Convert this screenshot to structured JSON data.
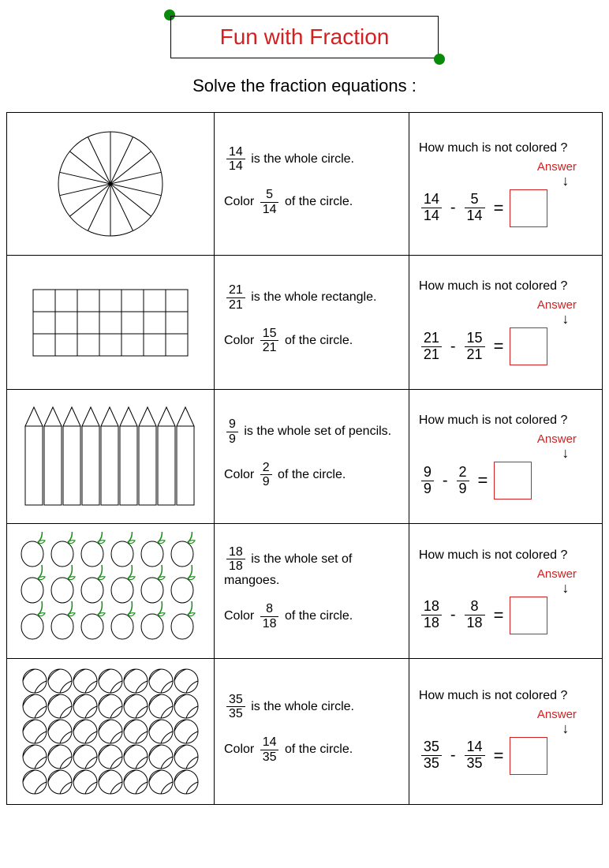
{
  "title": "Fun with Fraction",
  "subtitle": "Solve the fraction equations :",
  "colors": {
    "accent_red": "#d42020",
    "dot_green": "#0a8a0a",
    "leaf_green": "#1a8a1a",
    "border_black": "#000000",
    "background": "#ffffff"
  },
  "labels": {
    "question": "How much is not colored ?",
    "answer": "Answer",
    "is_the": "is the",
    "color_prefix": "Color",
    "of_the_circle": "of the circle.",
    "minus": "-",
    "equals": "="
  },
  "rows": [
    {
      "shape_type": "pie",
      "shape_desc": "whole circle.",
      "whole_num": "14",
      "whole_den": "14",
      "color_num": "5",
      "color_den": "14",
      "eq_a_num": "14",
      "eq_a_den": "14",
      "eq_b_num": "5",
      "eq_b_den": "14",
      "pie_slices": 14
    },
    {
      "shape_type": "rect_grid",
      "shape_desc": "whole rectangle.",
      "whole_num": "21",
      "whole_den": "21",
      "color_num": "15",
      "color_den": "21",
      "eq_a_num": "21",
      "eq_a_den": "21",
      "eq_b_num": "15",
      "eq_b_den": "21",
      "grid_cols": 7,
      "grid_rows": 3
    },
    {
      "shape_type": "pencils",
      "shape_desc": "whole set of pencils.",
      "whole_num": "9",
      "whole_den": "9",
      "color_num": "2",
      "color_den": "9",
      "eq_a_num": "9",
      "eq_a_den": "9",
      "eq_b_num": "2",
      "eq_b_den": "9",
      "pencil_count": 9
    },
    {
      "shape_type": "mangoes",
      "shape_desc": "whole set of mangoes.",
      "whole_num": "18",
      "whole_den": "18",
      "color_num": "8",
      "color_den": "18",
      "eq_a_num": "18",
      "eq_a_den": "18",
      "eq_b_num": "8",
      "eq_b_den": "18",
      "mango_cols": 6,
      "mango_rows": 3
    },
    {
      "shape_type": "balls",
      "shape_desc": "whole circle.",
      "whole_num": "35",
      "whole_den": "35",
      "color_num": "14",
      "color_den": "35",
      "eq_a_num": "35",
      "eq_a_den": "35",
      "eq_b_num": "14",
      "eq_b_den": "35",
      "ball_cols": 7,
      "ball_rows": 5
    }
  ]
}
